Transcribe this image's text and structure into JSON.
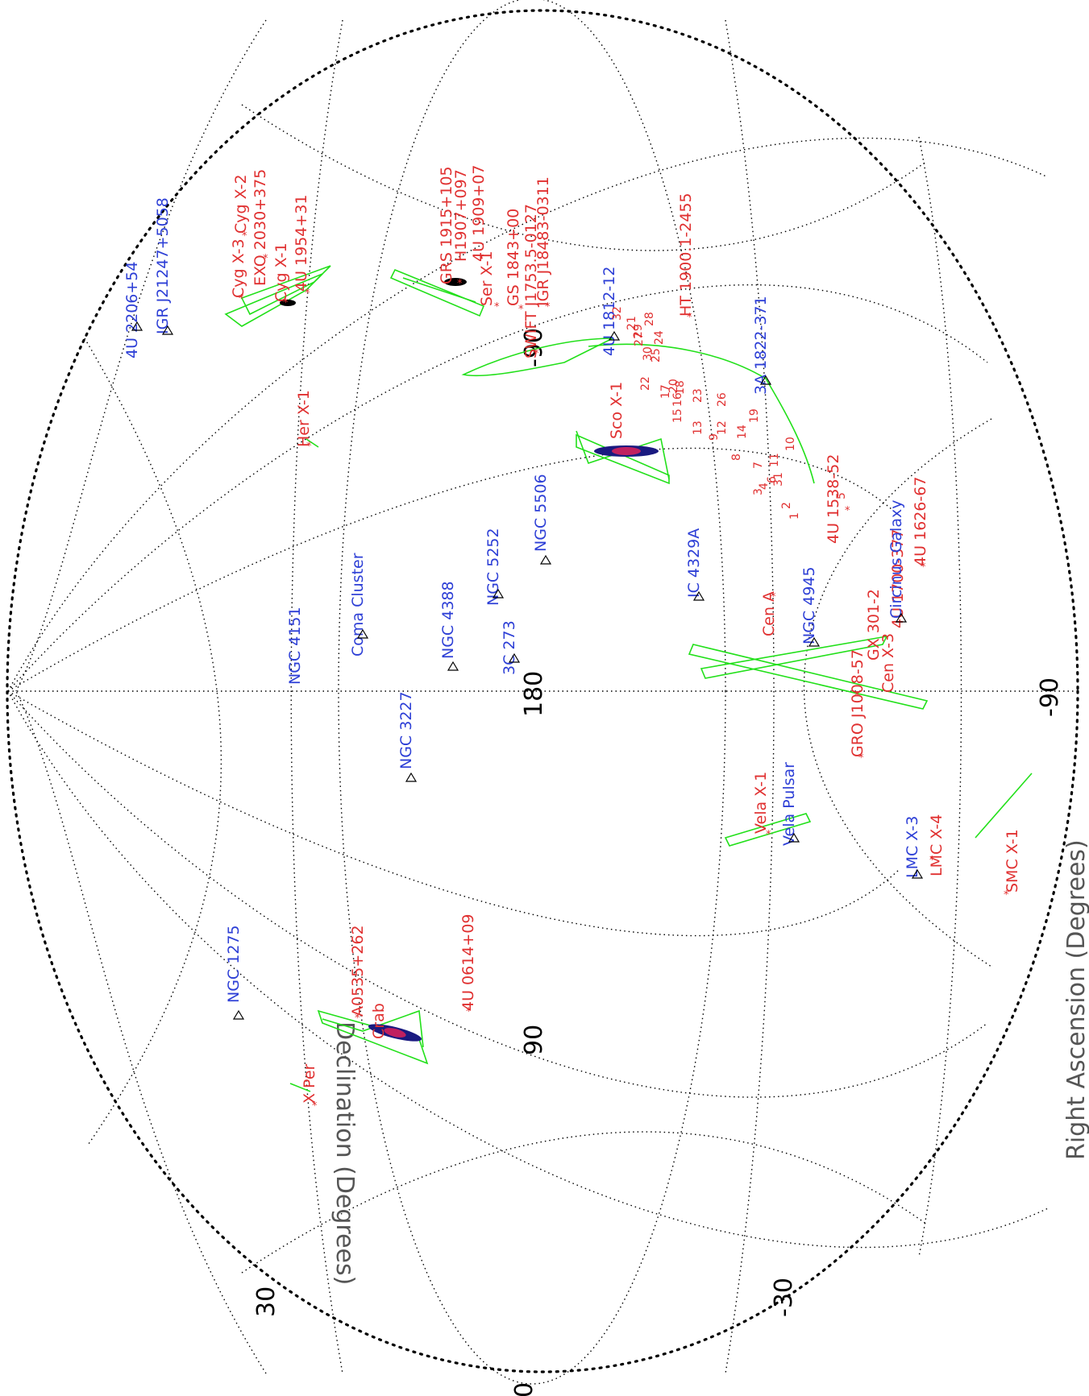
{
  "axes": {
    "x_title": "Right Ascension (Degrees)",
    "y_title": "Declination (Degrees)",
    "ra_ticks": [
      "-90",
      "180",
      "90"
    ],
    "dec_ticks": [
      "30",
      "0",
      "-30",
      "-90"
    ]
  },
  "colors": {
    "contour": "#22e01a",
    "galactic_source": "#e03030",
    "extragalactic_source": "#2d3fd6",
    "grid": "#000000"
  },
  "sources_red": [
    "Cyg X-3",
    "Cyg X-2",
    "EXO 2030+375",
    "Cyg X-1",
    "4U 1954+31",
    "GRS 1915+105",
    "H1907+097",
    "4U 1909+07",
    "Ser X-1",
    "GS 1843+00",
    "SWIFT J1753.5-0127",
    "IGR J18483-0311",
    "HT 1900.1-2455",
    "Her X-1",
    "Sco X-1",
    "4U 1538-52",
    "4U 1626-67",
    "Cen A",
    "GX 301-2",
    "GRO J1008-57",
    "Cen X-3",
    "4U 1700-377",
    "Vela X-1",
    "LMC X-4",
    "SMC X-1",
    "A0535+262",
    "Crab",
    "4U 0614+09",
    "X Per"
  ],
  "sources_blue": [
    "4U 2206+54",
    "IGR J21247+5058",
    "4U 1812-12",
    "3A 1822-371",
    "NGC 5506",
    "NGC 4151",
    "Coma Cluster",
    "NGC 4388",
    "NGC 5252",
    "3C 273",
    "IC 4329A",
    "NGC 4945",
    "Circinus Galaxy",
    "NGC 3227",
    "Vela Pulsar",
    "LMC X-3",
    "NGC 1275"
  ],
  "cluster_numbers": [
    "1",
    "2",
    "3",
    "4",
    "5",
    "6",
    "7",
    "8",
    "9",
    "10",
    "11",
    "12",
    "13",
    "14",
    "15",
    "16",
    "17",
    "18",
    "19",
    "20",
    "21",
    "22",
    "23",
    "24",
    "25",
    "26",
    "27",
    "28",
    "29",
    "30",
    "31",
    "32"
  ]
}
